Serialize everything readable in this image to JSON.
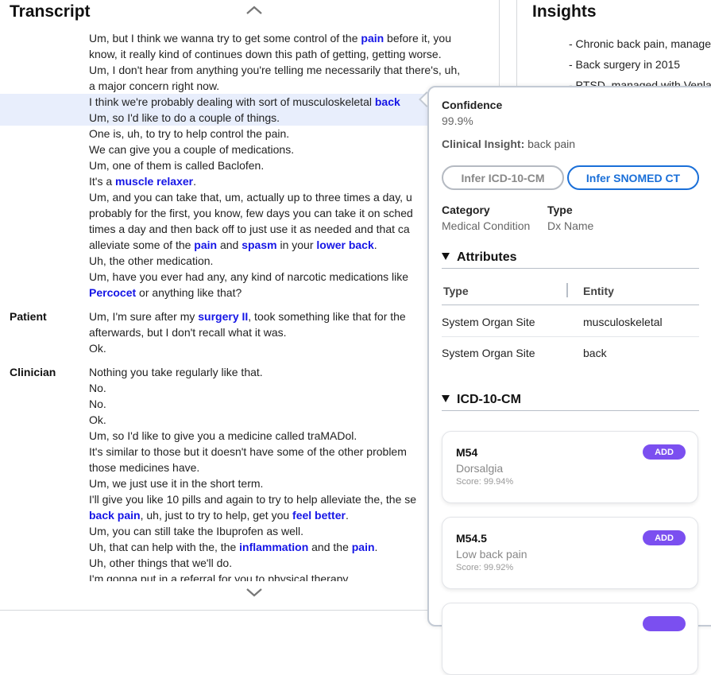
{
  "transcript": {
    "title": "Transcript",
    "groups": [
      {
        "speaker": "",
        "lines": [
          [
            {
              "t": "Um, but I think we wanna try to get some control of the "
            },
            {
              "t": "pain",
              "hl": 1
            },
            {
              "t": " before it, you"
            }
          ],
          [
            {
              "t": "know, it really kind of continues down this path of getting, getting worse."
            }
          ],
          [
            {
              "t": "Um, I don't hear from anything you're telling me necessarily that there's, uh,"
            }
          ],
          [
            {
              "t": "a major concern right now."
            }
          ],
          [
            {
              "t": "I think we're probably dealing with sort of musculoskeletal "
            },
            {
              "t": "back",
              "hl": 1
            }
          ],
          [
            {
              "t": "Um, so I'd like to do a couple of things."
            }
          ],
          [
            {
              "t": "One is, uh, to try to help control the pain."
            }
          ],
          [
            {
              "t": "We can give you a couple of medications."
            }
          ],
          [
            {
              "t": "Um, one of them is called Baclofen."
            }
          ],
          [
            {
              "t": "It's a "
            },
            {
              "t": "muscle relaxer",
              "hl": 1
            },
            {
              "t": "."
            }
          ],
          [
            {
              "t": "Um, and you can take that, um, actually up to three times a day, u"
            }
          ],
          [
            {
              "t": "probably for the first, you know, few days you can take it on sched"
            }
          ],
          [
            {
              "t": "times a day and then back off to just use it as needed and that ca"
            }
          ],
          [
            {
              "t": "alleviate some of the "
            },
            {
              "t": "pain",
              "hl": 1
            },
            {
              "t": " and "
            },
            {
              "t": "spasm",
              "hl": 1
            },
            {
              "t": " in your "
            },
            {
              "t": "lower back",
              "hl": 1
            },
            {
              "t": "."
            }
          ],
          [
            {
              "t": "Uh, the other medication."
            }
          ],
          [
            {
              "t": "Um, have you ever had any, any kind of narcotic medications like"
            }
          ],
          [
            {
              "t": "Percocet",
              "hl": 1
            },
            {
              "t": " or anything like that?"
            }
          ]
        ]
      },
      {
        "speaker": "Patient",
        "lines": [
          [
            {
              "t": "Um, I'm sure after my "
            },
            {
              "t": "surgery II",
              "hl": 1
            },
            {
              "t": ", took something like that for the"
            }
          ],
          [
            {
              "t": "afterwards, but I don't recall what it was."
            }
          ],
          [
            {
              "t": "Ok."
            }
          ]
        ]
      },
      {
        "speaker": "Clinician",
        "lines": [
          [
            {
              "t": "Nothing you take regularly like that."
            }
          ],
          [
            {
              "t": "No."
            }
          ],
          [
            {
              "t": "No."
            }
          ],
          [
            {
              "t": "Ok."
            }
          ],
          [
            {
              "t": "Um, so I'd like to give you a medicine called traMADol."
            }
          ],
          [
            {
              "t": "It's similar to those but it doesn't have some of the other problem"
            }
          ],
          [
            {
              "t": "those medicines have."
            }
          ],
          [
            {
              "t": "Um, we just use it in the short term."
            }
          ],
          [
            {
              "t": "I'll give you like 10 pills and again to try to help alleviate the, the se"
            }
          ],
          [
            {
              "t": "back pain",
              "hl": 1
            },
            {
              "t": ", uh, just to try to help, get you "
            },
            {
              "t": "feel better",
              "hl": 1
            },
            {
              "t": "."
            }
          ],
          [
            {
              "t": "Um, you can still take the Ibuprofen as well."
            }
          ],
          [
            {
              "t": "Uh, that can help with the, the "
            },
            {
              "t": "inflammation",
              "hl": 1
            },
            {
              "t": " and the "
            },
            {
              "t": "pain",
              "hl": 1
            },
            {
              "t": "."
            }
          ],
          [
            {
              "t": "Uh, other things that we'll do."
            }
          ],
          [
            {
              "t": "I'm gonna put in a referral for you to physical therapy"
            }
          ]
        ]
      }
    ]
  },
  "insights": {
    "title": "Insights",
    "bullets": [
      "- Chronic back pain, manage",
      "- Back surgery in 2015",
      "- PTSD, managed with Venla"
    ]
  },
  "popover": {
    "confidence_label": "Confidence",
    "confidence_value": "99.9%",
    "insight_label": "Clinical Insight:",
    "insight_value": "back pain",
    "btn_icd": "Infer ICD-10-CM",
    "btn_snomed": "Infer SNOMED CT",
    "category_label": "Category",
    "category_value": "Medical Condition",
    "type_label": "Type",
    "type_value": "Dx Name",
    "attributes_title": "Attributes",
    "attr_headers": [
      "Type",
      "Entity"
    ],
    "attr_rows": [
      [
        "System Organ Site",
        "musculoskeletal"
      ],
      [
        "System Organ Site",
        "back"
      ]
    ],
    "icd_title": "ICD-10-CM",
    "codes": [
      {
        "code": "M54",
        "desc": "Dorsalgia",
        "score": "Score: 99.94%",
        "add": "ADD"
      },
      {
        "code": "M54.5",
        "desc": "Low back pain",
        "score": "Score: 99.92%",
        "add": "ADD"
      }
    ]
  },
  "colors": {
    "highlight": "#1515e6",
    "selected_bg": "#e8eefc",
    "accent_blue": "#1a6fd8",
    "add_purple": "#7b4ff0"
  }
}
